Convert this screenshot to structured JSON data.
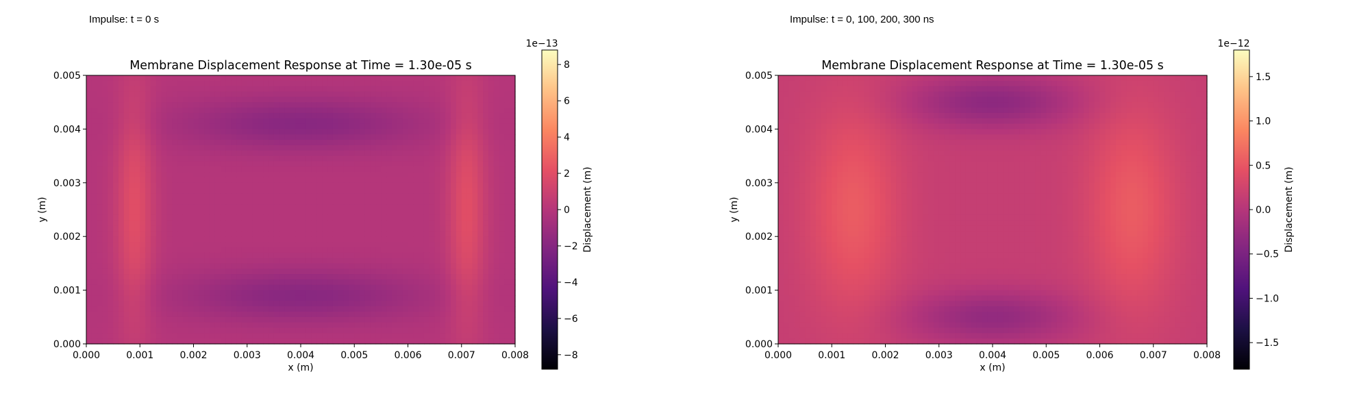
{
  "chart_data": [
    {
      "type": "heatmap",
      "panel_label": "Impulse: t = 0 s",
      "title": "Membrane Displacement Response at Time = 1.30e-05 s",
      "xlabel": "x (m)",
      "ylabel": "y (m)",
      "xlim": [
        0,
        0.008
      ],
      "ylim": [
        0,
        0.005
      ],
      "xticks": [
        "0.000",
        "0.001",
        "0.002",
        "0.003",
        "0.004",
        "0.005",
        "0.006",
        "0.007",
        "0.008"
      ],
      "yticks": [
        "0.000",
        "0.001",
        "0.002",
        "0.003",
        "0.004",
        "0.005"
      ],
      "colormap": "magma",
      "colorbar": {
        "label": "Displacement (m)",
        "offset_text": "1e−13",
        "range": [
          -8.8,
          8.8
        ],
        "ticks": [
          "−8",
          "−6",
          "−4",
          "−2",
          "0",
          "2",
          "4",
          "6",
          "8"
        ],
        "tick_values": [
          -8,
          -6,
          -4,
          -2,
          0,
          2,
          4,
          6,
          8
        ]
      },
      "field": {
        "base": 0.0,
        "features": [
          {
            "kind": "ridge",
            "x": 0.0009,
            "y": 0.0025,
            "sx": 0.00025,
            "sy": 0.0016,
            "amp": 2.0
          },
          {
            "kind": "ridge",
            "x": 0.0071,
            "y": 0.0025,
            "sx": 0.00025,
            "sy": 0.0016,
            "amp": 2.0
          },
          {
            "kind": "trough",
            "x": 0.004,
            "y": 0.0041,
            "sx": 0.0016,
            "sy": 0.00035,
            "amp": -1.9
          },
          {
            "kind": "trough",
            "x": 0.004,
            "y": 0.0009,
            "sx": 0.0016,
            "sy": 0.00035,
            "amp": -1.9
          }
        ]
      }
    },
    {
      "type": "heatmap",
      "panel_label": "Impulse: t = 0, 100, 200, 300 ns",
      "title": "Membrane Displacement Response at Time = 1.30e-05 s",
      "xlabel": "x (m)",
      "ylabel": "y (m)",
      "xlim": [
        0,
        0.008
      ],
      "ylim": [
        0,
        0.005
      ],
      "xticks": [
        "0.000",
        "0.001",
        "0.002",
        "0.003",
        "0.004",
        "0.005",
        "0.006",
        "0.007",
        "0.008"
      ],
      "yticks": [
        "0.000",
        "0.001",
        "0.002",
        "0.003",
        "0.004",
        "0.005"
      ],
      "colormap": "magma",
      "colorbar": {
        "label": "Displacement (m)",
        "offset_text": "1e−12",
        "range": [
          -1.8,
          1.8
        ],
        "ticks": [
          "−1.5",
          "−1.0",
          "−0.5",
          "0.0",
          "0.5",
          "1.0",
          "1.5"
        ],
        "tick_values": [
          -1.5,
          -1.0,
          -0.5,
          0.0,
          0.5,
          1.0,
          1.5
        ]
      },
      "field": {
        "base": 0.15,
        "features": [
          {
            "kind": "ridge",
            "x": 0.0014,
            "y": 0.0025,
            "sx": 0.0006,
            "sy": 0.0014,
            "amp": 0.4
          },
          {
            "kind": "ridge",
            "x": 0.0066,
            "y": 0.0025,
            "sx": 0.0006,
            "sy": 0.0014,
            "amp": 0.4
          },
          {
            "kind": "trough",
            "x": 0.004,
            "y": 0.0045,
            "sx": 0.0011,
            "sy": 0.00035,
            "amp": -0.5
          },
          {
            "kind": "trough",
            "x": 0.004,
            "y": 0.0005,
            "sx": 0.0011,
            "sy": 0.00035,
            "amp": -0.45
          }
        ]
      }
    }
  ]
}
